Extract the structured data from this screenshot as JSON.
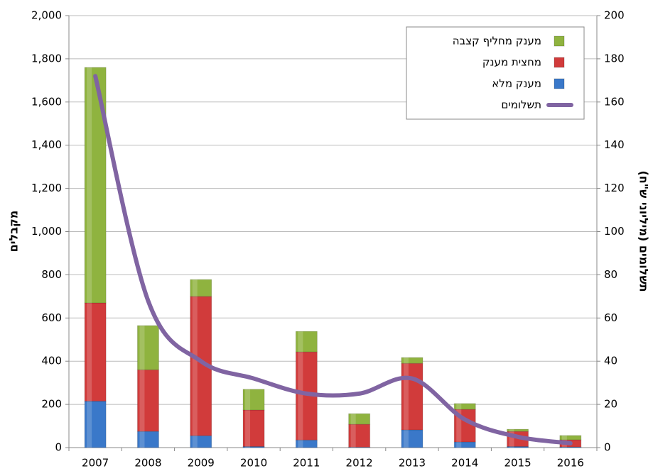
{
  "chart_data": {
    "type": "bar",
    "categories": [
      "2007",
      "2008",
      "2009",
      "2010",
      "2011",
      "2012",
      "2013",
      "2014",
      "2015",
      "2016"
    ],
    "series": [
      {
        "name": "מענק מלא",
        "color": "#3a78c9",
        "values": [
          215,
          75,
          55,
          5,
          35,
          2,
          82,
          26,
          5,
          3
        ]
      },
      {
        "name": "מחצית מענק",
        "color": "#d13b3b",
        "values": [
          455,
          285,
          645,
          169,
          408,
          106,
          308,
          151,
          70,
          33
        ]
      },
      {
        "name": "מענק מחליף קצבה",
        "color": "#8fb33f",
        "values": [
          1090,
          205,
          78,
          96,
          95,
          49,
          27,
          27,
          10,
          20
        ]
      },
      {
        "name": "תשלומים",
        "type": "line",
        "axis": "y2",
        "color": "#8064a2",
        "values": [
          172,
          68,
          40,
          32,
          25,
          25,
          32,
          13,
          5,
          2
        ]
      }
    ],
    "ylabel": "מקבלים",
    "y2label": "תשלומים (מיליוני ש\"ח)",
    "ylim": [
      0,
      2000
    ],
    "yticks": [
      {
        "value": 0,
        "label": "0"
      },
      {
        "value": 200,
        "label": "200"
      },
      {
        "value": 400,
        "label": "400"
      },
      {
        "value": 600,
        "label": "600"
      },
      {
        "value": 800,
        "label": "800"
      },
      {
        "value": 1000,
        "label": "1,000"
      },
      {
        "value": 1200,
        "label": "1,200"
      },
      {
        "value": 1400,
        "label": "1,400"
      },
      {
        "value": 1600,
        "label": "1,600"
      },
      {
        "value": 1800,
        "label": "1,800"
      },
      {
        "value": 2000,
        "label": "2,000"
      }
    ],
    "y2lim": [
      0,
      200
    ],
    "y2ticks": [
      0,
      20,
      40,
      60,
      80,
      100,
      120,
      140,
      160,
      180,
      200
    ],
    "grid": true,
    "stacked": true,
    "legend": "upper right"
  }
}
